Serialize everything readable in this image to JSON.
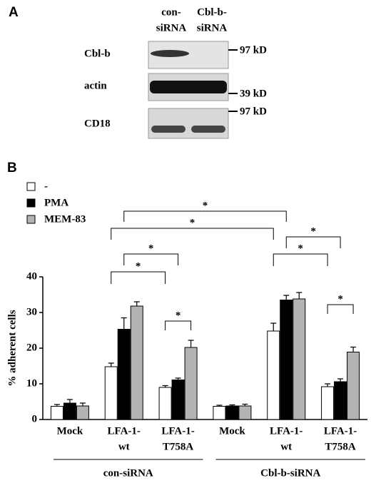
{
  "panel_a": {
    "label": "A",
    "lanes": [
      [
        "con-",
        "siRNA"
      ],
      [
        "Cbl-b-",
        "siRNA"
      ]
    ],
    "blots": [
      "Cbl-b",
      "actin",
      "CD18"
    ],
    "markers": [
      "97 kD",
      "39 kD",
      "97 kD"
    ]
  },
  "chart_data": {
    "type": "bar",
    "panel_label": "B",
    "y_label": "% adherent cells",
    "categories": [
      [
        "Mock"
      ],
      [
        "LFA-1-",
        "wt"
      ],
      [
        "LFA-1-",
        "T758A"
      ],
      [
        "Mock"
      ],
      [
        "LFA-1-",
        "wt"
      ],
      [
        "LFA-1-",
        "T758A"
      ]
    ],
    "groups": [
      "con-siRNA",
      "Cbl-b-siRNA"
    ],
    "series": [
      {
        "name": "-",
        "color": "#ffffff",
        "values": [
          3.7,
          14.8,
          9.0,
          3.7,
          24.8,
          9.2
        ],
        "errors": [
          0.5,
          1.0,
          0.5,
          0.3,
          2.2,
          0.8
        ]
      },
      {
        "name": "PMA",
        "color": "#000000",
        "values": [
          4.6,
          25.3,
          11.1,
          3.8,
          33.5,
          10.6
        ],
        "errors": [
          1.0,
          3.2,
          0.5,
          0.3,
          1.3,
          0.8
        ]
      },
      {
        "name": "MEM-83",
        "color": "#b3b3b3",
        "values": [
          3.8,
          31.8,
          20.2,
          3.8,
          33.8,
          18.9
        ],
        "errors": [
          0.8,
          1.2,
          2.0,
          0.5,
          1.8,
          1.4
        ]
      }
    ],
    "significance": [
      "*",
      "*",
      "*",
      "*",
      "*",
      "*",
      "*",
      "*"
    ],
    "ylim": [
      0,
      40
    ],
    "yticks": [
      0,
      10,
      20,
      30,
      40
    ],
    "legend": "top-left"
  }
}
